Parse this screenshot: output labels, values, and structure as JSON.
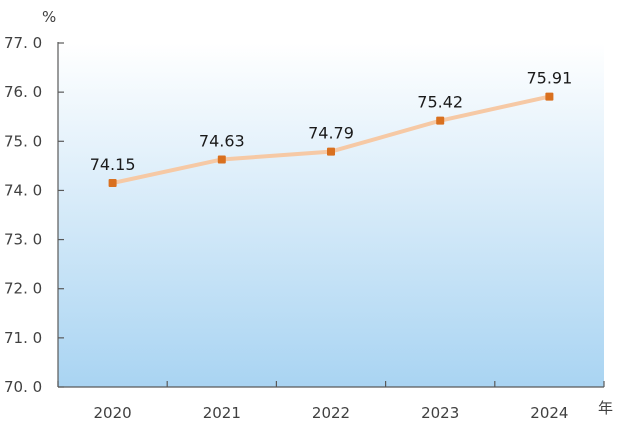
{
  "chart_data": {
    "type": "line",
    "title": "",
    "xlabel": "年",
    "ylabel": "%",
    "categories": [
      "2020",
      "2021",
      "2022",
      "2023",
      "2024"
    ],
    "series": [
      {
        "values": [
          74.15,
          74.63,
          74.79,
          75.42,
          75.91
        ],
        "labels": [
          "74.15",
          "74.63",
          "74.79",
          "75.42",
          "75.91"
        ]
      }
    ],
    "ylim": [
      70.0,
      77.0
    ],
    "yticks": [
      70.0,
      71.0,
      72.0,
      73.0,
      74.0,
      75.0,
      76.0,
      77.0
    ],
    "ytick_labels": [
      "70. 0",
      "71. 0",
      "72. 0",
      "73. 0",
      "74. 0",
      "75. 0",
      "76. 0",
      "77. 0"
    ],
    "grid": false,
    "legend": "none",
    "colors": {
      "line": "#f6c9a5",
      "marker": "#d9701f",
      "axis": "#595959",
      "background_top": "#ffffff",
      "background_bottom": "#a9d4f2"
    }
  }
}
